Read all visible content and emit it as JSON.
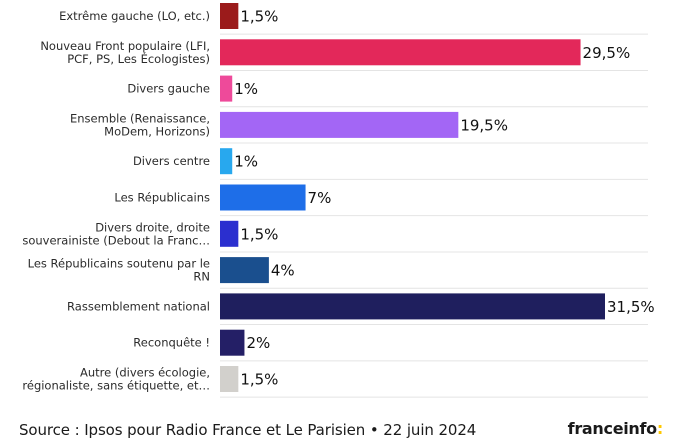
{
  "chart_data": {
    "type": "bar",
    "orientation": "horizontal",
    "categories": [
      [
        "Extrême gauche (LO, etc.)"
      ],
      [
        "Nouveau Front populaire (LFI,",
        "PCF, PS, Les Écologistes)"
      ],
      [
        "Divers gauche"
      ],
      [
        "Ensemble (Renaissance,",
        "MoDem, Horizons)"
      ],
      [
        "Divers centre"
      ],
      [
        "Les Républicains"
      ],
      [
        "Divers droite, droite",
        "souverainiste (Debout la Franc…"
      ],
      [
        "Les Républicains soutenu par le",
        "RN"
      ],
      [
        "Rassemblement national"
      ],
      [
        "Reconquête !"
      ],
      [
        "Autre (divers écologie,",
        "régionaliste, sans étiquette, et…"
      ]
    ],
    "values": [
      1.5,
      29.5,
      1,
      19.5,
      1,
      7,
      1.5,
      4,
      31.5,
      2,
      1.5
    ],
    "value_labels": [
      "1,5%",
      "29,5%",
      "1%",
      "19,5%",
      "1%",
      "7%",
      "1,5%",
      "4%",
      "31,5%",
      "2%",
      "1,5%"
    ],
    "colors": [
      "#9b1b1b",
      "#e3285a",
      "#ee4a9a",
      "#a366f5",
      "#28a8ee",
      "#1e6ee8",
      "#2b2fcf",
      "#1a4f8e",
      "#1f1f5e",
      "#241f66",
      "#d2d0cc"
    ],
    "xlim": [
      0,
      31.5
    ]
  },
  "source": {
    "text": "Source : Ipsos pour Radio France et Le Parisien • 22 juin 2024"
  },
  "logo": {
    "name": "franceinfo",
    "colon": ":"
  }
}
